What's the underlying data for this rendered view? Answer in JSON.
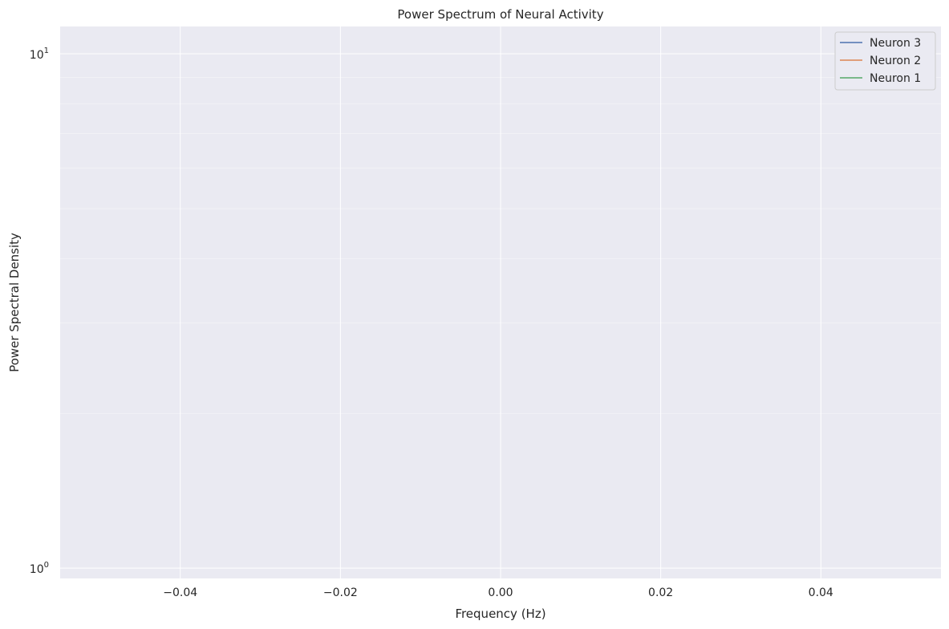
{
  "chart_data": {
    "type": "line",
    "title": "Power Spectrum of Neural Activity",
    "xlabel": "Frequency (Hz)",
    "ylabel": "Power Spectral Density",
    "xlim": [
      -0.055,
      0.055
    ],
    "x_ticks": [
      -0.04,
      -0.02,
      0.0,
      0.02,
      0.04
    ],
    "x_tick_labels": [
      "−0.04",
      "−0.02",
      "0.00",
      "0.02",
      "0.04"
    ],
    "yscale": "log",
    "ylim": [
      0.955,
      11.3
    ],
    "y_major_ticks": [
      {
        "value": 1,
        "base": "10",
        "exp": "0"
      },
      {
        "value": 10,
        "base": "10",
        "exp": "1"
      }
    ],
    "y_minor_ticks": [
      2,
      3,
      4,
      5,
      6,
      7,
      8,
      9
    ],
    "grid": true,
    "legend_placement": "top-right",
    "series": [
      {
        "name": "Neuron 3",
        "color": "#4c72b0",
        "x": [],
        "y": []
      },
      {
        "name": "Neuron 2",
        "color": "#dd8452",
        "x": [],
        "y": []
      },
      {
        "name": "Neuron 1",
        "color": "#55a868",
        "x": [],
        "y": []
      }
    ],
    "colors": {
      "plot_background": "#eaeaf2",
      "grid": "#ffffff",
      "text": "#262626"
    }
  }
}
